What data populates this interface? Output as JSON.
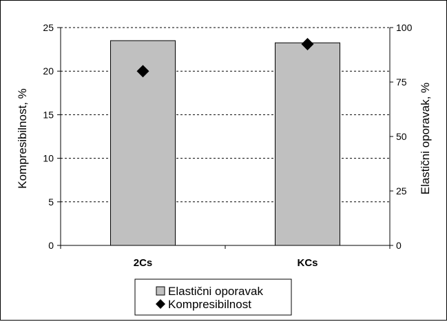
{
  "chart_data": {
    "type": "bar",
    "categories": [
      "2Cs",
      "KCs"
    ],
    "series": [
      {
        "name": "Elastični oporavak",
        "kind": "bar",
        "axis": "right",
        "values": [
          94,
          93
        ],
        "color": "#c0c0c0"
      },
      {
        "name": "Kompresibilnost",
        "kind": "marker",
        "marker": "diamond",
        "axis": "left",
        "values": [
          20,
          23.1
        ],
        "color": "#000000"
      }
    ],
    "ylabel": "Kompresibilnost, %",
    "ylim": [
      0,
      25
    ],
    "yticks": [
      0,
      5,
      10,
      15,
      20,
      25
    ],
    "y2label": "Elastični oporavak, %",
    "y2lim": [
      0,
      100
    ],
    "y2ticks": [
      0,
      25,
      50,
      75,
      100
    ],
    "grid": true,
    "legend_position": "bottom"
  }
}
